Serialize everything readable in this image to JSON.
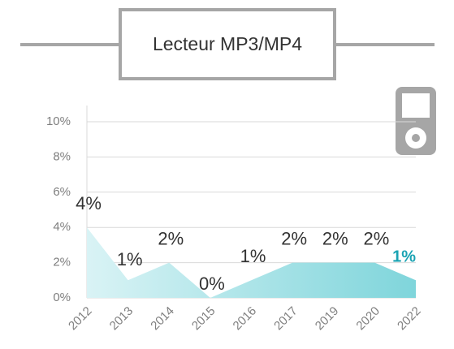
{
  "chart_data": {
    "type": "area",
    "title": "Lecteur MP3/MP4",
    "categories": [
      "2012",
      "2013",
      "2014",
      "2015",
      "2016",
      "2017",
      "2019",
      "2020",
      "2022"
    ],
    "values": [
      4,
      1,
      2,
      0,
      1,
      2,
      2,
      2,
      1
    ],
    "value_labels": [
      "4%",
      "1%",
      "2%",
      "0%",
      "1%",
      "2%",
      "2%",
      "2%",
      "1%"
    ],
    "ylim": [
      0,
      10
    ],
    "yticks": [
      {
        "value": 0,
        "label": "0%"
      },
      {
        "value": 2,
        "label": "2%"
      },
      {
        "value": 4,
        "label": "4%"
      },
      {
        "value": 6,
        "label": "6%"
      },
      {
        "value": 8,
        "label": "8%"
      },
      {
        "value": 10,
        "label": "10%"
      }
    ],
    "grid": true,
    "color": "#7fd5db",
    "highlight_color": "#1aa3b3"
  }
}
